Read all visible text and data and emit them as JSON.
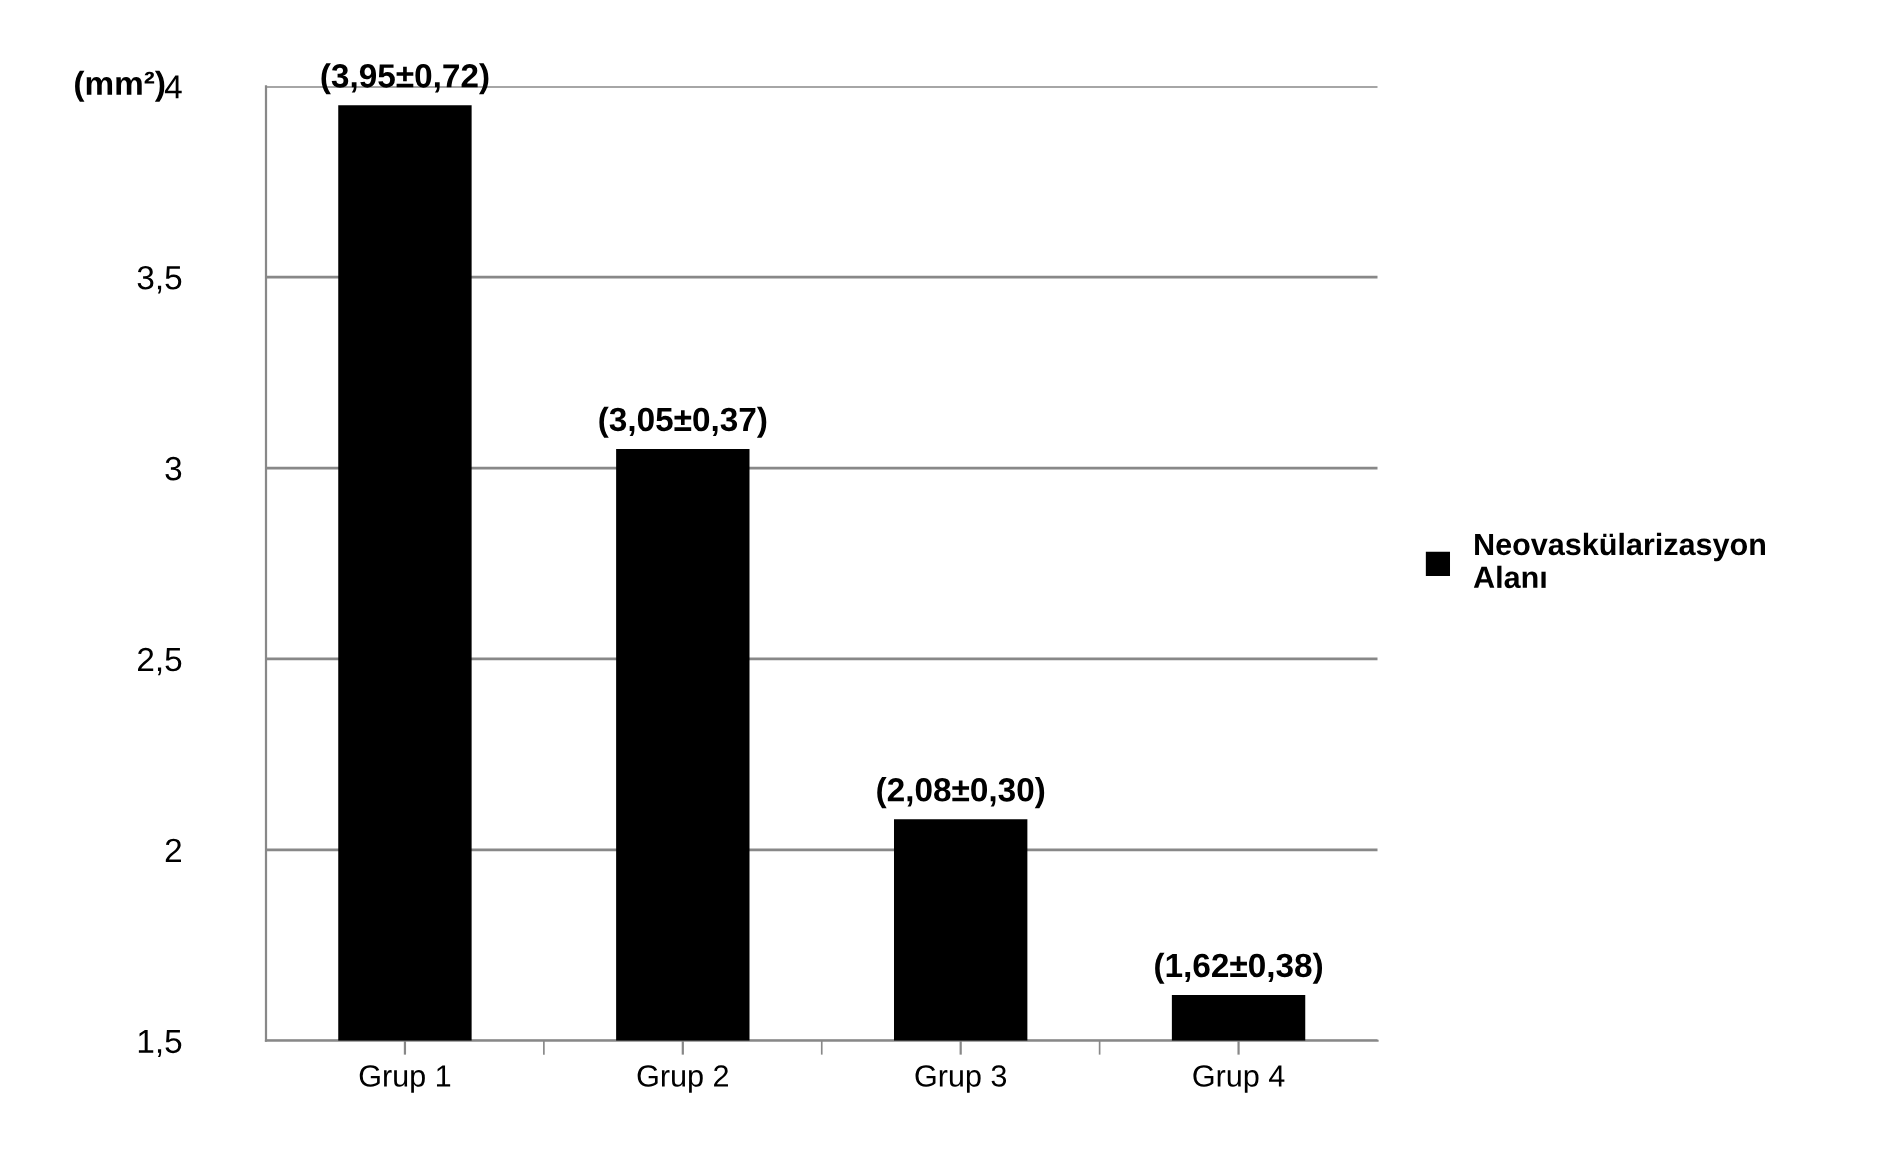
{
  "chart_data": {
    "type": "bar",
    "ylabel": "(mm²)",
    "categories": [
      "Grup 1",
      "Grup 2",
      "Grup 3",
      "Grup 4"
    ],
    "series": [
      {
        "name": "Neovaskülarizasyon Alanı",
        "color": "#000000",
        "values": [
          3.95,
          3.05,
          2.08,
          1.62
        ],
        "value_labels": [
          "(3,95±0,72)",
          "(3,05±0,37)",
          "(2,08±0,30)",
          "(1,62±0,38)"
        ]
      }
    ],
    "ylim": [
      1.5,
      4
    ],
    "yticks": [
      {
        "value": 1.5,
        "label": "1,5"
      },
      2,
      {
        "value": 2.5,
        "label": "2,5"
      },
      3,
      {
        "value": 3.5,
        "label": "3,5"
      },
      4
    ],
    "grid": "y",
    "legend": "right"
  }
}
